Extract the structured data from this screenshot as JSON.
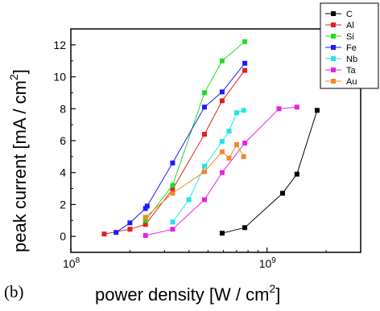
{
  "chart_data": {
    "type": "scatter",
    "panel_label": "(b)",
    "xlabel": {
      "main": "power density [W / cm",
      "sup": "2",
      "end": "]"
    },
    "ylabel": {
      "main": "peak current [mA / cm",
      "sup": "2",
      "end": "]"
    },
    "x_scale": "log",
    "xlim": [
      100000000,
      3000000000
    ],
    "ylim": [
      -1,
      13
    ],
    "x_ticks": [
      {
        "value": 100000000,
        "base": "10",
        "exp": "8"
      },
      {
        "value": 1000000000,
        "base": "10",
        "exp": "9"
      }
    ],
    "y_ticks": [
      0,
      2,
      4,
      6,
      8,
      10,
      12
    ],
    "grid": false,
    "legend_position": "top-right",
    "series": [
      {
        "name": "C",
        "color": "#000000",
        "x": [
          590000000,
          770000000,
          1200000000,
          1420000000,
          1800000000
        ],
        "y": [
          0.2,
          0.55,
          2.7,
          3.9,
          7.9
        ]
      },
      {
        "name": "Al",
        "color": "#e02020",
        "x": [
          148000000,
          200000000,
          240000000,
          330000000,
          480000000,
          590000000,
          770000000
        ],
        "y": [
          0.15,
          0.45,
          0.75,
          2.95,
          6.4,
          8.5,
          10.4
        ]
      },
      {
        "name": "Si",
        "color": "#22dd22",
        "x": [
          240000000,
          330000000,
          480000000,
          590000000,
          770000000
        ],
        "y": [
          1.0,
          3.2,
          9.0,
          11.0,
          12.2
        ]
      },
      {
        "name": "Fe",
        "color": "#1a1aff",
        "x": [
          170000000,
          200000000,
          240000000,
          245000000,
          330000000,
          480000000,
          590000000,
          770000000
        ],
        "y": [
          0.25,
          0.85,
          1.75,
          1.9,
          4.6,
          8.1,
          9.05,
          10.85
        ]
      },
      {
        "name": "Nb",
        "color": "#22e5e5",
        "x": [
          330000000,
          400000000,
          480000000,
          590000000,
          640000000,
          700000000,
          760000000
        ],
        "y": [
          0.9,
          2.3,
          4.4,
          5.95,
          6.6,
          7.75,
          7.9
        ]
      },
      {
        "name": "Ta",
        "color": "#e522e5",
        "x": [
          240000000,
          330000000,
          480000000,
          590000000,
          770000000,
          1150000000,
          1420000000
        ],
        "y": [
          0.05,
          0.45,
          2.3,
          4.0,
          5.85,
          8.0,
          8.1
        ]
      },
      {
        "name": "Au",
        "color": "#f08a24",
        "x": [
          240000000,
          330000000,
          480000000,
          590000000,
          640000000,
          700000000,
          760000000
        ],
        "y": [
          1.2,
          2.7,
          4.05,
          5.3,
          4.9,
          5.75,
          5.0
        ]
      }
    ]
  }
}
